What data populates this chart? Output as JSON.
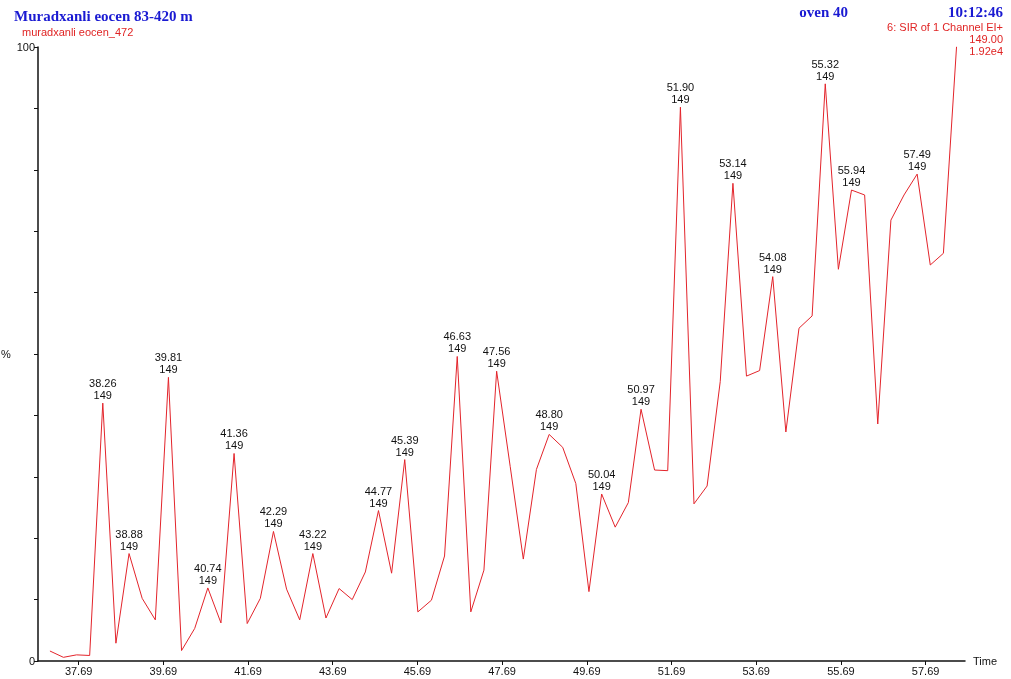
{
  "chart_data": {
    "type": "line",
    "title": "Muradxanli eocen 83-420 m",
    "subtitle": "muradxanli eocen_472",
    "xlabel": "Time",
    "ylabel": "%",
    "x": [
      37.02,
      37.33,
      37.64,
      37.95,
      38.26,
      38.57,
      38.88,
      39.19,
      39.5,
      39.81,
      40.12,
      40.43,
      40.74,
      41.05,
      41.36,
      41.67,
      41.98,
      42.29,
      42.6,
      42.91,
      43.22,
      43.53,
      43.84,
      44.15,
      44.46,
      44.77,
      45.08,
      45.39,
      45.7,
      46.02,
      46.33,
      46.63,
      46.95,
      47.26,
      47.56,
      47.88,
      48.19,
      48.5,
      48.8,
      49.12,
      49.43,
      49.74,
      50.04,
      50.36,
      50.67,
      50.97,
      51.29,
      51.6,
      51.9,
      52.22,
      52.53,
      52.84,
      53.14,
      53.46,
      53.77,
      54.08,
      54.39,
      54.7,
      55.01,
      55.32,
      55.63,
      55.94,
      56.25,
      56.56,
      56.87,
      57.18,
      57.49,
      57.8,
      58.11,
      58.42
    ],
    "values": [
      1.6,
      0.6,
      1.0,
      0.9,
      42.0,
      2.9,
      17.5,
      10.2,
      6.7,
      46.2,
      1.7,
      5.3,
      11.9,
      6.2,
      33.8,
      6.1,
      10.2,
      21.1,
      11.7,
      6.7,
      17.5,
      7.0,
      11.8,
      10.0,
      14.5,
      24.5,
      14.3,
      32.8,
      8.0,
      9.9,
      17.1,
      49.6,
      8.0,
      14.8,
      47.2,
      31.7,
      16.6,
      31.2,
      36.9,
      34.8,
      28.9,
      11.3,
      27.2,
      21.8,
      25.8,
      41.0,
      31.1,
      31.0,
      90.2,
      25.6,
      28.5,
      45.5,
      77.8,
      46.4,
      47.3,
      62.6,
      37.3,
      54.2,
      56.2,
      94.0,
      63.8,
      76.7,
      75.9,
      38.6,
      71.8,
      75.9,
      79.3,
      64.5,
      66.4,
      100.0
    ],
    "color": "#e3242b",
    "marker": "none",
    "line_style": "solid",
    "xlim": [
      36.73,
      58.62
    ],
    "xticks": [
      37.69,
      39.69,
      41.69,
      43.69,
      45.69,
      47.69,
      49.69,
      51.69,
      53.69,
      55.69,
      57.69
    ],
    "ylim": [
      0,
      100
    ],
    "yticks": [
      0,
      {
        "value": 10,
        "label": null
      },
      {
        "value": 20,
        "label": null
      },
      {
        "value": 30,
        "label": null
      },
      {
        "value": 40,
        "label": null
      },
      {
        "value": 50,
        "label": null
      },
      {
        "value": 60,
        "label": null
      },
      {
        "value": 70,
        "label": null
      },
      {
        "value": 80,
        "label": null
      },
      {
        "value": 90,
        "label": null
      },
      100
    ],
    "annotations": [
      "oven 40",
      "10:12:46",
      "6: SIR of 1 Channel EI+",
      "149.00",
      "1.92e4",
      {
        "text": "38.26\n149",
        "x": 38.26,
        "y": 42.0
      },
      {
        "text": "38.88\n149",
        "x": 38.88,
        "y": 17.5
      },
      {
        "text": "39.81\n149",
        "x": 39.81,
        "y": 46.2
      },
      {
        "text": "40.74\n149",
        "x": 40.74,
        "y": 11.9
      },
      {
        "text": "41.36\n149",
        "x": 41.36,
        "y": 33.8
      },
      {
        "text": "42.29\n149",
        "x": 42.29,
        "y": 21.1
      },
      {
        "text": "43.22\n149",
        "x": 43.22,
        "y": 17.5
      },
      {
        "text": "44.77\n149",
        "x": 44.77,
        "y": 24.5
      },
      {
        "text": "45.39\n149",
        "x": 45.39,
        "y": 32.8
      },
      {
        "text": "46.63\n149",
        "x": 46.63,
        "y": 49.6
      },
      {
        "text": "47.56\n149",
        "x": 47.56,
        "y": 47.2
      },
      {
        "text": "48.80\n149",
        "x": 48.8,
        "y": 36.9
      },
      {
        "text": "50.04\n149",
        "x": 50.04,
        "y": 27.2
      },
      {
        "text": "50.97\n149",
        "x": 50.97,
        "y": 41.0
      },
      {
        "text": "51.90\n149",
        "x": 51.9,
        "y": 90.2
      },
      {
        "text": "53.14\n149",
        "x": 53.14,
        "y": 77.8
      },
      {
        "text": "54.08\n149",
        "x": 54.08,
        "y": 62.6
      },
      {
        "text": "55.32\n149",
        "x": 55.32,
        "y": 94.0
      },
      {
        "text": "55.94\n149",
        "x": 55.94,
        "y": 76.7
      },
      {
        "text": "57.49\n149",
        "x": 57.49,
        "y": 79.3
      }
    ]
  }
}
